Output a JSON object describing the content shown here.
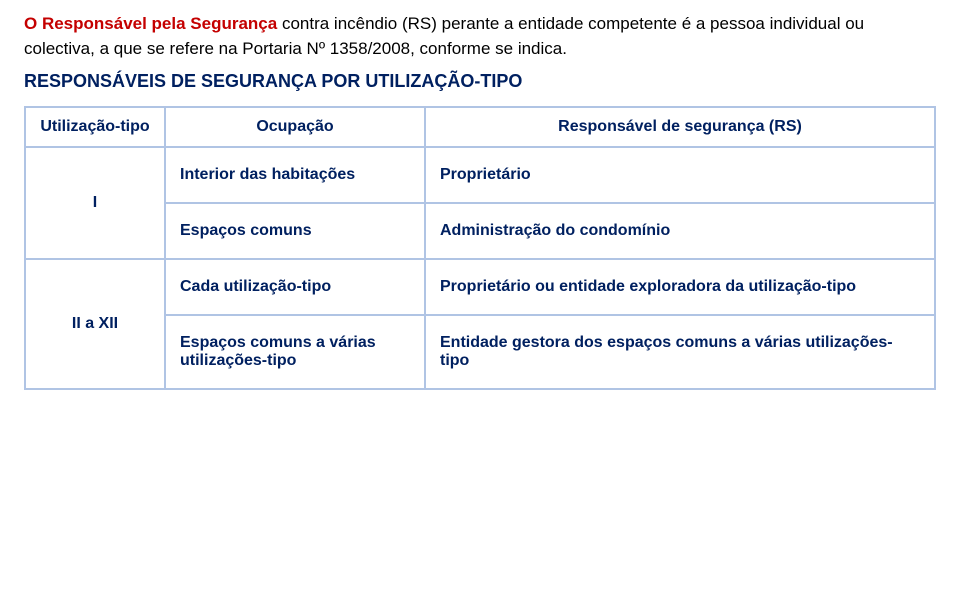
{
  "intro": {
    "highlight": "O Responsável pela Segurança",
    "rest": " contra incêndio (RS) perante a entidade competente é a pessoa individual ou colectiva, a que se refere na Portaria Nº 1358/2008, conforme se indica."
  },
  "subtitle": "RESPONSÁVEIS DE SEGURANÇA POR UTILIZAÇÃO-TIPO",
  "headers": {
    "col1": "Utilização-tipo",
    "col2": "Ocupação",
    "col3": "Responsável de segurança (RS)"
  },
  "group1": {
    "label": "I",
    "rows": [
      {
        "occ": "Interior das habitações",
        "resp": "Proprietário"
      },
      {
        "occ": "Espaços comuns",
        "resp": "Administração do condomínio"
      }
    ]
  },
  "group2": {
    "label": "II a XII",
    "rows": [
      {
        "occ": "Cada utilização-tipo",
        "resp": "Proprietário ou entidade exploradora da utilização-tipo"
      },
      {
        "occ": "Espaços comuns a várias utilizações-tipo",
        "resp": "Entidade gestora dos espaços comuns a várias utilizações-tipo"
      }
    ]
  },
  "colors": {
    "border": "#b0c4e4",
    "navy": "#002060",
    "red": "#c40000",
    "bg": "#ffffff"
  }
}
